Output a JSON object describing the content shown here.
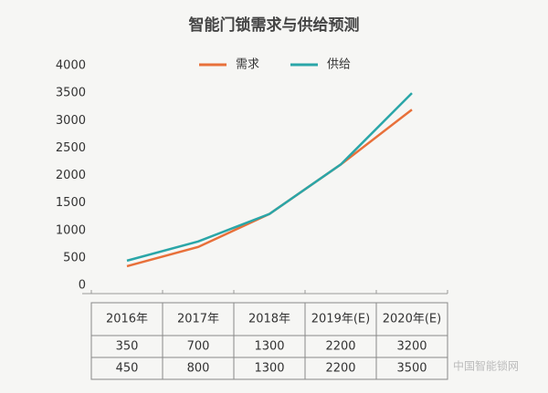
{
  "chart_data": {
    "type": "line",
    "title": "智能门锁需求与供给预测",
    "categories": [
      "2016年",
      "2017年",
      "2018年",
      "2019年(E)",
      "2020年(E)"
    ],
    "series": [
      {
        "name": "需求",
        "color": "#e8703a",
        "values": [
          350,
          700,
          1300,
          2200,
          3200
        ]
      },
      {
        "name": "供给",
        "color": "#2aa6a8",
        "values": [
          450,
          800,
          1300,
          2200,
          3500
        ]
      }
    ],
    "ylim": [
      0,
      4000
    ],
    "yticks": [
      0,
      500,
      1000,
      1500,
      2000,
      2500,
      3000,
      3500,
      4000
    ],
    "grid": false,
    "legend": "top",
    "watermark": "中国智能锁网"
  }
}
